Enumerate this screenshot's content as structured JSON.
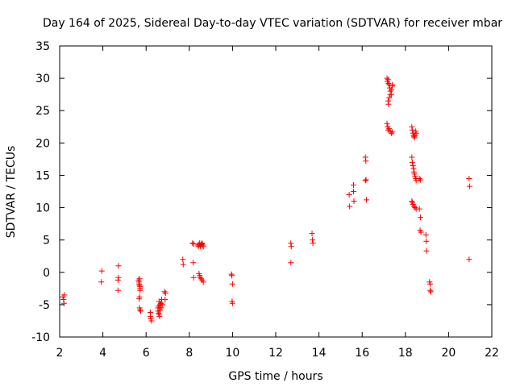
{
  "colors": {
    "marker": "#ff0000",
    "axis": "#000000",
    "background": "#ffffff"
  },
  "chart_data": {
    "type": "scatter",
    "title": "Day 164 of 2025, Sidereal Day-to-day VTEC variation (SDTVAR) for receiver mbar",
    "xlabel": "GPS time / hours",
    "ylabel": "SDTVAR / TECUs",
    "xlim": [
      2,
      22
    ],
    "ylim": [
      -10,
      35
    ],
    "xticks": [
      2,
      4,
      6,
      8,
      10,
      12,
      14,
      16,
      18,
      20,
      22
    ],
    "yticks": [
      -10,
      -5,
      0,
      5,
      10,
      15,
      20,
      25,
      30,
      35
    ],
    "grid": false,
    "marker": "+",
    "series": [
      {
        "name": "SDTVAR",
        "x": [
          2.15,
          2.18,
          2.2,
          2.22,
          3.95,
          3.93,
          4.72,
          4.7,
          4.7,
          4.72,
          5.65,
          5.67,
          5.68,
          5.7,
          5.72,
          5.72,
          5.7,
          5.68,
          5.7,
          5.72,
          5.75,
          5.7,
          5.72,
          6.2,
          6.2,
          6.22,
          6.25,
          6.55,
          6.55,
          6.58,
          6.6,
          6.62,
          6.65,
          6.68,
          6.6,
          6.58,
          6.62,
          6.65,
          6.7,
          6.72,
          6.75,
          6.7,
          6.88,
          6.9,
          6.85,
          7.7,
          7.72,
          8.15,
          8.18,
          8.2,
          8.2,
          8.4,
          8.42,
          8.45,
          8.48,
          8.5,
          8.52,
          8.55,
          8.58,
          8.6,
          8.62,
          8.65,
          8.45,
          8.48,
          8.5,
          8.55,
          8.6,
          8.65,
          9.95,
          9.97,
          10.0,
          9.98,
          10.0,
          12.7,
          12.72,
          12.7,
          13.68,
          13.7,
          13.72,
          15.4,
          15.42,
          15.6,
          15.62,
          15.6,
          16.15,
          16.17,
          16.18,
          16.2,
          16.15,
          17.15,
          17.17,
          17.2,
          17.22,
          17.25,
          17.28,
          17.3,
          17.35,
          17.4,
          17.2,
          17.22,
          17.25,
          17.3,
          17.35,
          17.4,
          17.15,
          17.18,
          17.2,
          17.25,
          17.3,
          17.35,
          17.4,
          18.3,
          18.32,
          18.35,
          18.38,
          18.4,
          18.42,
          18.45,
          18.48,
          18.5,
          18.3,
          18.32,
          18.35,
          18.38,
          18.4,
          18.42,
          18.45,
          18.48,
          18.5,
          18.3,
          18.32,
          18.35,
          18.4,
          18.45,
          18.5,
          18.65,
          18.7,
          18.65,
          18.7,
          18.68,
          18.72,
          18.95,
          18.97,
          18.98,
          19.12,
          19.15,
          19.18,
          19.15,
          20.95,
          20.97,
          20.95
        ],
        "y": [
          -3.8,
          -4.2,
          -4.8,
          -3.5,
          0.2,
          -1.5,
          1.0,
          -1.2,
          -2.8,
          -0.8,
          -1.2,
          -1.5,
          -1.8,
          -2.0,
          -2.2,
          -2.5,
          -3.8,
          -4.1,
          -5.5,
          -5.8,
          -6.0,
          -1.0,
          -2.8,
          -6.2,
          -6.8,
          -7.2,
          -7.5,
          -5.5,
          -6.0,
          -6.3,
          -6.5,
          -6.8,
          -5.0,
          -4.8,
          -4.5,
          -5.2,
          -5.5,
          -5.8,
          -4.8,
          -4.2,
          -5.0,
          -5.5,
          -4.2,
          -3.2,
          -3.0,
          2.0,
          1.2,
          4.5,
          1.5,
          -0.8,
          4.4,
          4.2,
          4.0,
          4.3,
          4.5,
          4.2,
          4.0,
          4.3,
          4.5,
          4.4,
          4.2,
          4.0,
          -0.2,
          -0.5,
          -0.8,
          -1.0,
          -1.2,
          -1.5,
          -0.3,
          -0.5,
          -1.8,
          -4.5,
          -4.8,
          4.5,
          4.0,
          1.5,
          6.0,
          5.0,
          4.5,
          12.0,
          10.2,
          12.5,
          11.0,
          13.5,
          17.8,
          17.2,
          14.3,
          11.2,
          14.2,
          30.0,
          29.5,
          29.8,
          29.2,
          29.0,
          28.5,
          28.0,
          27.5,
          28.8,
          26.5,
          26.0,
          27.0,
          27.5,
          28.2,
          29.0,
          23.0,
          22.5,
          22.0,
          22.2,
          21.8,
          21.5,
          21.7,
          22.5,
          22.0,
          21.5,
          21.2,
          21.0,
          20.8,
          21.2,
          21.8,
          21.5,
          17.8,
          17.0,
          16.5,
          16.0,
          15.5,
          15.2,
          14.8,
          14.5,
          14.2,
          11.0,
          10.8,
          10.5,
          10.2,
          10.0,
          9.8,
          14.5,
          14.3,
          9.8,
          8.5,
          6.5,
          6.2,
          5.8,
          4.8,
          3.3,
          -1.5,
          -1.8,
          -3.0,
          -2.8,
          14.5,
          13.3,
          2.0
        ]
      }
    ]
  }
}
